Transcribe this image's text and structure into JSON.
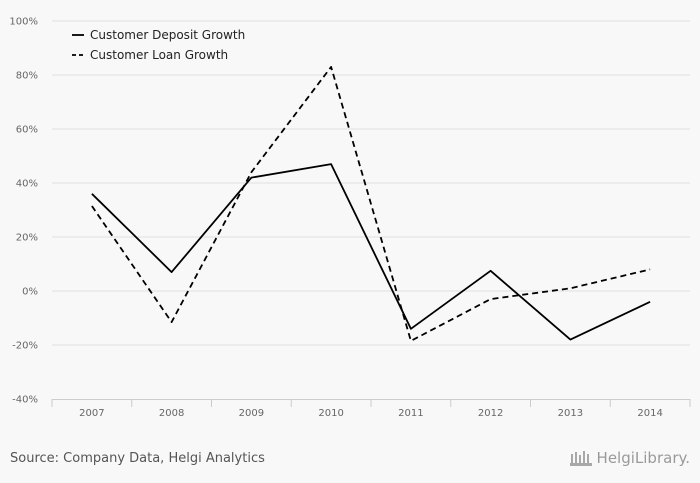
{
  "chart_data": {
    "type": "line",
    "categories": [
      "2007",
      "2008",
      "2009",
      "2010",
      "2011",
      "2012",
      "2013",
      "2014"
    ],
    "series": [
      {
        "name": "Customer Deposit Growth",
        "dash": "solid",
        "color": "#000000",
        "values": [
          36,
          7,
          42,
          47,
          -14,
          7.5,
          -18,
          -4
        ]
      },
      {
        "name": "Customer Loan Growth",
        "dash": "dashed",
        "color": "#000000",
        "values": [
          31.5,
          -11.5,
          44,
          83,
          -18.5,
          -3,
          1,
          8
        ]
      }
    ],
    "ylim": [
      -40,
      100
    ],
    "yticks": [
      -40,
      -20,
      0,
      20,
      40,
      60,
      80,
      100
    ],
    "ytick_labels": [
      "-40%",
      "-20%",
      "0%",
      "20%",
      "40%",
      "60%",
      "80%",
      "100%"
    ],
    "grid": true,
    "legend_position": "top-left"
  },
  "footer": {
    "source": "Source: Company Data, Helgi Analytics",
    "logo_text": "HelgiLibrary."
  },
  "colors": {
    "background": "#f8f8f8",
    "grid": "#e0e0e0",
    "axis": "#cccccc"
  }
}
